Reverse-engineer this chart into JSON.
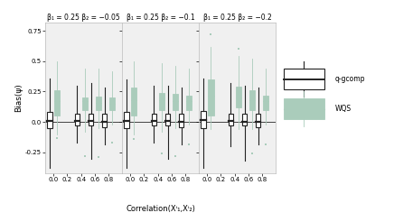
{
  "panels": [
    {
      "title": "β₁ = 0.25 β₂ = −0.05"
    },
    {
      "title": "β₁ = 0.25 β₂ = −0.1"
    },
    {
      "title": "β₁ = 0.25 β₂ = −0.2"
    }
  ],
  "x_positions": [
    0.0,
    0.4,
    0.6,
    0.8
  ],
  "x_ticks": [
    0.0,
    0.2,
    0.4,
    0.6,
    0.8
  ],
  "x_labels": [
    "0.0",
    "0.2",
    "0.4",
    "0.6",
    "0.8"
  ],
  "ylabel": "Bias(ψ)",
  "xlabel": "Correlation(Xⁱ₁,Xⁱ₂)",
  "ylim": [
    -0.42,
    0.82
  ],
  "yticks": [
    -0.25,
    0.0,
    0.25,
    0.5,
    0.75
  ],
  "gcomp_color": "#222222",
  "wqs_color": "#aaccbb",
  "wqs_edge_color": "#aaccbb",
  "background_color": "#ffffff",
  "panel_bg": "#f0f0f0",
  "gcomp_boxes": {
    "panel0": {
      "0.0": {
        "q1": -0.05,
        "median": 0.01,
        "q3": 0.08,
        "whislo": -0.38,
        "whishi": 0.36,
        "fliers_high": [],
        "fliers_low": []
      },
      "0.4": {
        "q1": -0.03,
        "median": 0.01,
        "q3": 0.07,
        "whislo": -0.17,
        "whishi": 0.3,
        "fliers_high": [],
        "fliers_low": []
      },
      "0.6": {
        "q1": -0.03,
        "median": 0.01,
        "q3": 0.07,
        "whislo": -0.3,
        "whishi": 0.32,
        "fliers_high": [],
        "fliers_low": []
      },
      "0.8": {
        "q1": -0.04,
        "median": 0.0,
        "q3": 0.07,
        "whislo": -0.18,
        "whishi": 0.28,
        "fliers_high": [],
        "fliers_low": []
      }
    },
    "panel1": {
      "0.0": {
        "q1": -0.05,
        "median": 0.01,
        "q3": 0.08,
        "whislo": -0.38,
        "whishi": 0.35,
        "fliers_high": [],
        "fliers_low": []
      },
      "0.4": {
        "q1": -0.03,
        "median": 0.01,
        "q3": 0.07,
        "whislo": -0.17,
        "whishi": 0.3,
        "fliers_high": [],
        "fliers_low": []
      },
      "0.6": {
        "q1": -0.03,
        "median": 0.01,
        "q3": 0.07,
        "whislo": -0.3,
        "whishi": 0.3,
        "fliers_high": [],
        "fliers_low": []
      },
      "0.8": {
        "q1": -0.04,
        "median": 0.0,
        "q3": 0.07,
        "whislo": -0.18,
        "whishi": 0.28,
        "fliers_high": [],
        "fliers_low": []
      }
    },
    "panel2": {
      "0.0": {
        "q1": -0.05,
        "median": 0.02,
        "q3": 0.09,
        "whislo": -0.38,
        "whishi": 0.36,
        "fliers_high": [],
        "fliers_low": []
      },
      "0.4": {
        "q1": -0.03,
        "median": 0.01,
        "q3": 0.07,
        "whislo": -0.2,
        "whishi": 0.32,
        "fliers_high": [],
        "fliers_low": []
      },
      "0.6": {
        "q1": -0.03,
        "median": 0.0,
        "q3": 0.07,
        "whislo": -0.32,
        "whishi": 0.3,
        "fliers_high": [],
        "fliers_low": []
      },
      "0.8": {
        "q1": -0.04,
        "median": 0.0,
        "q3": 0.07,
        "whislo": -0.18,
        "whishi": 0.28,
        "fliers_high": [],
        "fliers_low": []
      }
    }
  },
  "wqs_boxes": {
    "panel0": {
      "0.0": {
        "q1": 0.05,
        "median": 0.17,
        "q3": 0.26,
        "whislo": -0.1,
        "whishi": 0.5,
        "fliers_high": [],
        "fliers_low": [
          -0.13
        ]
      },
      "0.4": {
        "q1": 0.1,
        "median": 0.17,
        "q3": 0.2,
        "whislo": -0.08,
        "whishi": 0.44,
        "fliers_high": [],
        "fliers_low": [
          -0.28
        ]
      },
      "0.6": {
        "q1": 0.1,
        "median": 0.16,
        "q3": 0.21,
        "whislo": -0.05,
        "whishi": 0.44,
        "fliers_high": [],
        "fliers_low": [
          -0.29
        ]
      },
      "0.8": {
        "q1": 0.1,
        "median": 0.15,
        "q3": 0.2,
        "whislo": -0.02,
        "whishi": 0.42,
        "fliers_high": [],
        "fliers_low": [
          -0.17
        ]
      }
    },
    "panel1": {
      "0.0": {
        "q1": 0.05,
        "median": 0.18,
        "q3": 0.28,
        "whislo": -0.1,
        "whishi": 0.5,
        "fliers_high": [],
        "fliers_low": [
          -0.14
        ]
      },
      "0.4": {
        "q1": 0.1,
        "median": 0.18,
        "q3": 0.24,
        "whislo": -0.08,
        "whishi": 0.48,
        "fliers_high": [],
        "fliers_low": [
          -0.26
        ]
      },
      "0.6": {
        "q1": 0.1,
        "median": 0.17,
        "q3": 0.23,
        "whislo": -0.05,
        "whishi": 0.46,
        "fliers_high": [],
        "fliers_low": [
          -0.28
        ]
      },
      "0.8": {
        "q1": 0.1,
        "median": 0.17,
        "q3": 0.22,
        "whislo": -0.02,
        "whishi": 0.44,
        "fliers_high": [],
        "fliers_low": [
          -0.18
        ]
      }
    },
    "panel2": {
      "0.0": {
        "q1": 0.05,
        "median": 0.22,
        "q3": 0.35,
        "whislo": -0.06,
        "whishi": 0.62,
        "fliers_high": [
          0.72
        ],
        "fliers_low": []
      },
      "0.4": {
        "q1": 0.12,
        "median": 0.2,
        "q3": 0.29,
        "whislo": -0.06,
        "whishi": 0.54,
        "fliers_high": [
          0.6
        ],
        "fliers_low": []
      },
      "0.6": {
        "q1": 0.1,
        "median": 0.18,
        "q3": 0.26,
        "whislo": -0.06,
        "whishi": 0.52,
        "fliers_high": [],
        "fliers_low": [
          -0.26
        ]
      },
      "0.8": {
        "q1": 0.1,
        "median": 0.17,
        "q3": 0.22,
        "whislo": -0.02,
        "whishi": 0.44,
        "fliers_high": [],
        "fliers_low": [
          -0.18
        ]
      }
    }
  }
}
